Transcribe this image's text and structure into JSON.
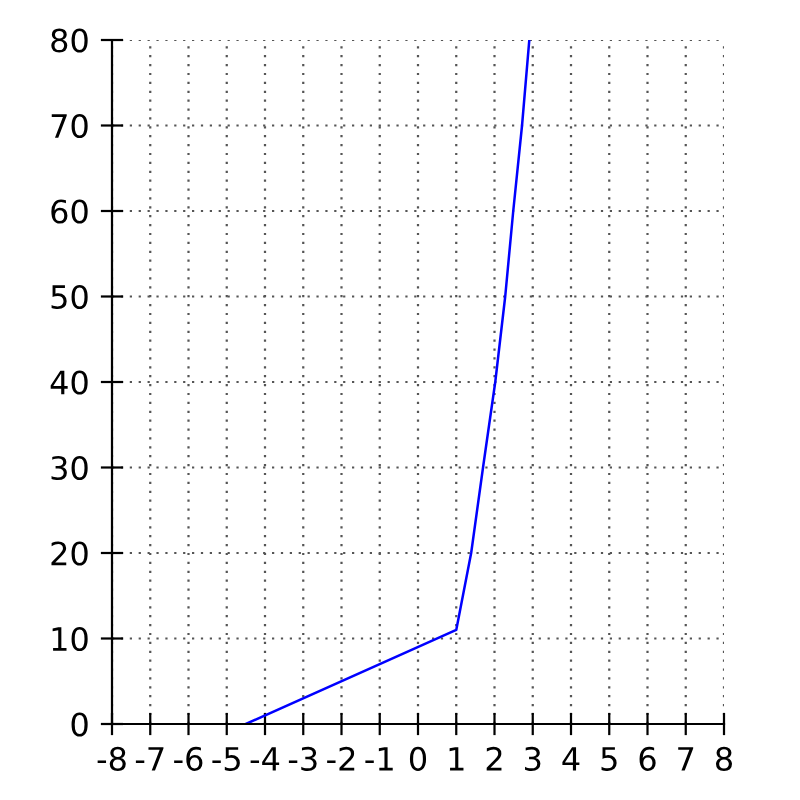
{
  "chart_data": {
    "type": "line",
    "x": [
      -4.5,
      1,
      1.39,
      1.7,
      2.02,
      2.28,
      2.49,
      2.72,
      2.91
    ],
    "series": [
      {
        "color": "#0000ff",
        "values": [
          0,
          11,
          20,
          30,
          40,
          50,
          60,
          70,
          80
        ]
      }
    ],
    "xlim": [
      -8,
      8
    ],
    "xticks": [
      -8,
      -7,
      -6,
      -5,
      -4,
      -3,
      -2,
      -1,
      0,
      1,
      2,
      3,
      4,
      5,
      6,
      7,
      8
    ],
    "ylim": [
      0,
      80
    ],
    "yticks": [
      0,
      10,
      20,
      30,
      40,
      50,
      60,
      70,
      80
    ],
    "grid": true,
    "line_style": "solid"
  }
}
